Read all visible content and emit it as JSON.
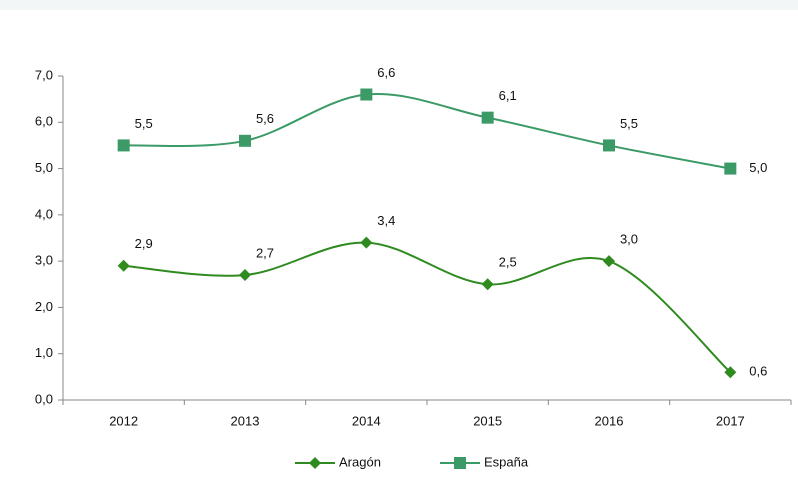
{
  "chart_data": {
    "type": "line",
    "categories": [
      "2012",
      "2013",
      "2014",
      "2015",
      "2016",
      "2017"
    ],
    "series": [
      {
        "name": "Aragón",
        "color": "#2f8a1f",
        "marker": "diamond",
        "values": [
          2.9,
          2.7,
          3.4,
          2.5,
          3.0,
          0.6
        ],
        "value_labels": [
          "2,9",
          "2,7",
          "3,4",
          "2,5",
          "3,0",
          "0,6"
        ]
      },
      {
        "name": "España",
        "color": "#3b9a66",
        "marker": "square",
        "values": [
          5.5,
          5.6,
          6.6,
          6.1,
          5.5,
          5.0
        ],
        "value_labels": [
          "5,5",
          "5,6",
          "6,6",
          "6,1",
          "5,5",
          "5,0"
        ]
      }
    ],
    "ylim": [
      0,
      7
    ],
    "yticks": [
      {
        "value": 0,
        "label": "0,0"
      },
      {
        "value": 1,
        "label": "1,0"
      },
      {
        "value": 2,
        "label": "2,0"
      },
      {
        "value": 3,
        "label": "3,0"
      },
      {
        "value": 4,
        "label": "4,0"
      },
      {
        "value": 5,
        "label": "5,0"
      },
      {
        "value": 6,
        "label": "6,0"
      },
      {
        "value": 7,
        "label": "7,0"
      }
    ],
    "grid": false,
    "legend": "bottom"
  }
}
